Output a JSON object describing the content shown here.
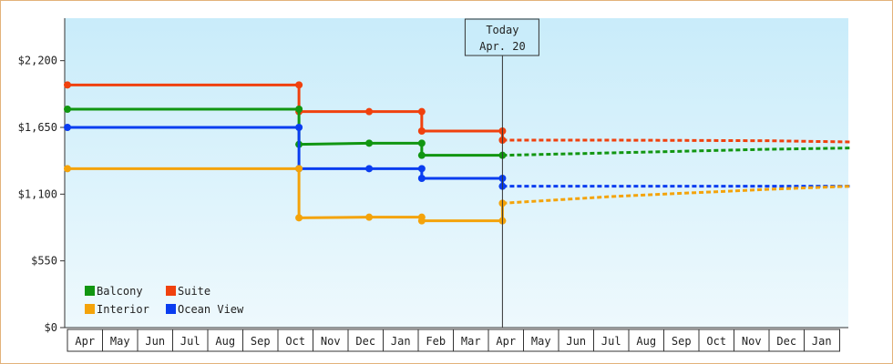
{
  "colors": {
    "frame_border": "#e3b27a",
    "plot_bg_top": "#c9ecfa",
    "plot_bg_bottom": "#eef9fd",
    "axis": "#333333",
    "Balcony": "#119611",
    "Suite": "#f0410e",
    "Interior": "#f4a30a",
    "Ocean View": "#0a3df0"
  },
  "chart_data": {
    "type": "line",
    "title": "",
    "xlabel": "",
    "ylabel": "",
    "x_tick_labels": [
      "Apr",
      "May",
      "Jun",
      "Jul",
      "Aug",
      "Sep",
      "Oct",
      "Nov",
      "Dec",
      "Jan",
      "Feb",
      "Mar",
      "Apr",
      "May",
      "Jun",
      "Jul",
      "Aug",
      "Sep",
      "Oct",
      "Nov",
      "Dec",
      "Jan"
    ],
    "y_ticks": [
      {
        "value": 0,
        "label": "$0"
      },
      {
        "value": 550,
        "label": "$550"
      },
      {
        "value": 1100,
        "label": "$1,100"
      },
      {
        "value": 1650,
        "label": "$1,650"
      },
      {
        "value": 2200,
        "label": "$2,200"
      }
    ],
    "ylim": [
      0,
      2550
    ],
    "xlim": [
      0,
      22.3
    ],
    "grid": false,
    "legend_placement": "bottom-left",
    "today_marker": {
      "x": 12.4,
      "line1": "Today",
      "line2": "Apr. 20"
    },
    "series": [
      {
        "name": "Suite",
        "historical": [
          [
            0,
            2000
          ],
          [
            6.6,
            2000
          ],
          [
            6.6,
            1780
          ],
          [
            8.6,
            1780
          ],
          [
            10.1,
            1780
          ],
          [
            10.1,
            1620
          ],
          [
            12.4,
            1620
          ],
          [
            12.4,
            1545
          ]
        ],
        "points": [
          [
            0,
            2000
          ],
          [
            6.6,
            2000
          ],
          [
            6.6,
            1780
          ],
          [
            8.6,
            1780
          ],
          [
            10.1,
            1780
          ],
          [
            10.1,
            1620
          ],
          [
            12.4,
            1620
          ],
          [
            12.4,
            1545
          ]
        ],
        "forecast": [
          [
            12.4,
            1545
          ],
          [
            15.5,
            1545
          ],
          [
            20.0,
            1540
          ],
          [
            22.3,
            1530
          ]
        ]
      },
      {
        "name": "Balcony",
        "historical": [
          [
            0,
            1800
          ],
          [
            6.6,
            1800
          ],
          [
            6.6,
            1510
          ],
          [
            8.6,
            1520
          ],
          [
            10.1,
            1520
          ],
          [
            10.1,
            1420
          ],
          [
            12.4,
            1420
          ]
        ],
        "points": [
          [
            0,
            1800
          ],
          [
            6.6,
            1800
          ],
          [
            6.6,
            1510
          ],
          [
            8.6,
            1520
          ],
          [
            10.1,
            1520
          ],
          [
            10.1,
            1420
          ],
          [
            12.4,
            1420
          ]
        ],
        "forecast": [
          [
            12.4,
            1420
          ],
          [
            15.5,
            1440
          ],
          [
            20.0,
            1470
          ],
          [
            22.3,
            1480
          ]
        ]
      },
      {
        "name": "Ocean View",
        "historical": [
          [
            0,
            1650
          ],
          [
            6.6,
            1650
          ],
          [
            6.6,
            1310
          ],
          [
            8.6,
            1310
          ],
          [
            10.1,
            1310
          ],
          [
            10.1,
            1230
          ],
          [
            12.4,
            1230
          ],
          [
            12.4,
            1165
          ]
        ],
        "points": [
          [
            0,
            1650
          ],
          [
            6.6,
            1650
          ],
          [
            6.6,
            1310
          ],
          [
            8.6,
            1310
          ],
          [
            10.1,
            1310
          ],
          [
            10.1,
            1230
          ],
          [
            12.4,
            1230
          ],
          [
            12.4,
            1165
          ]
        ],
        "forecast": [
          [
            12.4,
            1165
          ],
          [
            22.3,
            1165
          ]
        ]
      },
      {
        "name": "Interior",
        "historical": [
          [
            0,
            1310
          ],
          [
            6.6,
            1310
          ],
          [
            6.6,
            905
          ],
          [
            8.6,
            910
          ],
          [
            10.1,
            910
          ],
          [
            10.1,
            880
          ],
          [
            12.4,
            880
          ],
          [
            12.4,
            1025
          ]
        ],
        "points": [
          [
            0,
            1310
          ],
          [
            6.6,
            1310
          ],
          [
            6.6,
            905
          ],
          [
            8.6,
            910
          ],
          [
            10.1,
            910
          ],
          [
            10.1,
            880
          ],
          [
            12.4,
            880
          ],
          [
            12.4,
            1025
          ]
        ],
        "forecast": [
          [
            12.4,
            1025
          ],
          [
            15.5,
            1080
          ],
          [
            20.0,
            1140
          ],
          [
            22.3,
            1165
          ]
        ]
      }
    ],
    "legend": [
      {
        "name": "Balcony"
      },
      {
        "name": "Suite"
      },
      {
        "name": "Interior"
      },
      {
        "name": "Ocean View"
      }
    ]
  }
}
